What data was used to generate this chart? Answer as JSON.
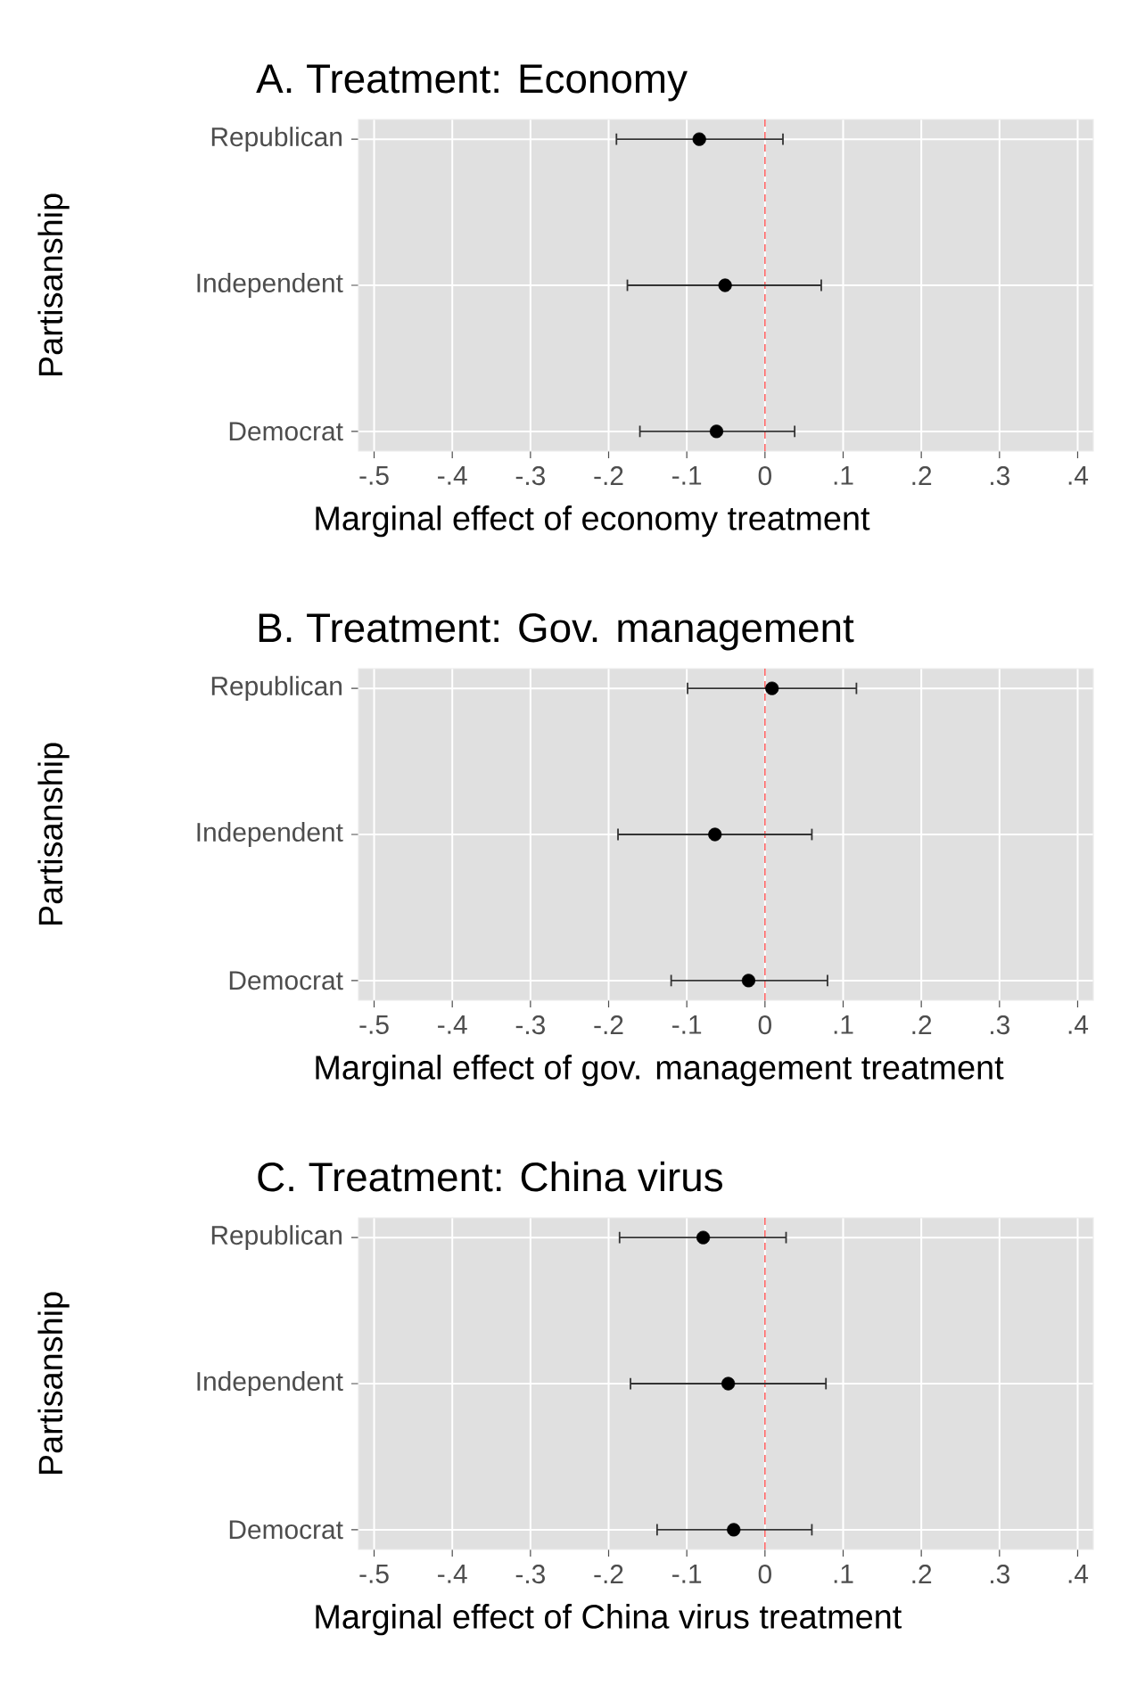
{
  "chart_data": [
    {
      "type": "scatter",
      "orientation": "horizontal",
      "title": "A. Treatment: Economy",
      "xlabel": "Marginal effect of economy treatment",
      "ylabel": "Partisanship",
      "categories": [
        "Republican",
        "Independent",
        "Democrat"
      ],
      "series": [
        {
          "color": "#000000",
          "values": [
            -0.084,
            -0.051,
            -0.062
          ],
          "errors": [
            [
              -0.19,
              0.023
            ],
            [
              -0.176,
              0.072
            ],
            [
              -0.16,
              0.038
            ]
          ]
        }
      ],
      "xlim": [
        -0.52,
        0.42
      ],
      "xticks": [
        {
          "value": -0.5,
          "label": "-.5"
        },
        {
          "value": -0.4,
          "label": "-.4"
        },
        {
          "value": -0.3,
          "label": "-.3"
        },
        {
          "value": -0.2,
          "label": "-.2"
        },
        {
          "value": -0.1,
          "label": "-.1"
        },
        0,
        {
          "value": 0.1,
          "label": ".1"
        },
        {
          "value": 0.2,
          "label": ".2"
        },
        {
          "value": 0.3,
          "label": ".3"
        },
        {
          "value": 0.4,
          "label": ".4"
        }
      ],
      "ref_lines": [
        {
          "axis": "x",
          "value": 0,
          "color": "#ff6666",
          "line_style": "dashed"
        }
      ],
      "grid": true
    },
    {
      "type": "scatter",
      "orientation": "horizontal",
      "title": "B. Treatment: Gov. management",
      "xlabel": "Marginal effect of gov. management treatment",
      "ylabel": "Partisanship",
      "categories": [
        "Republican",
        "Independent",
        "Democrat"
      ],
      "series": [
        {
          "color": "#000000",
          "values": [
            0.009,
            -0.064,
            -0.021
          ],
          "errors": [
            [
              -0.099,
              0.117
            ],
            [
              -0.188,
              0.06
            ],
            [
              -0.12,
              0.08
            ]
          ]
        }
      ],
      "xlim": [
        -0.52,
        0.42
      ],
      "xticks": [
        {
          "value": -0.5,
          "label": "-.5"
        },
        {
          "value": -0.4,
          "label": "-.4"
        },
        {
          "value": -0.3,
          "label": "-.3"
        },
        {
          "value": -0.2,
          "label": "-.2"
        },
        {
          "value": -0.1,
          "label": "-.1"
        },
        0,
        {
          "value": 0.1,
          "label": ".1"
        },
        {
          "value": 0.2,
          "label": ".2"
        },
        {
          "value": 0.3,
          "label": ".3"
        },
        {
          "value": 0.4,
          "label": ".4"
        }
      ],
      "ref_lines": [
        {
          "axis": "x",
          "value": 0,
          "color": "#ff6666",
          "line_style": "dashed"
        }
      ],
      "grid": true
    },
    {
      "type": "scatter",
      "orientation": "horizontal",
      "title": "C. Treatment: China virus",
      "xlabel": "Marginal effect of China virus treatment",
      "ylabel": "Partisanship",
      "categories": [
        "Republican",
        "Independent",
        "Democrat"
      ],
      "series": [
        {
          "color": "#000000",
          "values": [
            -0.079,
            -0.047,
            -0.04
          ],
          "errors": [
            [
              -0.186,
              0.027
            ],
            [
              -0.172,
              0.078
            ],
            [
              -0.138,
              0.06
            ]
          ]
        }
      ],
      "xlim": [
        -0.52,
        0.42
      ],
      "xticks": [
        {
          "value": -0.5,
          "label": "-.5"
        },
        {
          "value": -0.4,
          "label": "-.4"
        },
        {
          "value": -0.3,
          "label": "-.3"
        },
        {
          "value": -0.2,
          "label": "-.2"
        },
        {
          "value": -0.1,
          "label": "-.1"
        },
        0,
        {
          "value": 0.1,
          "label": ".1"
        },
        {
          "value": 0.2,
          "label": ".2"
        },
        {
          "value": 0.3,
          "label": ".3"
        },
        {
          "value": 0.4,
          "label": ".4"
        }
      ],
      "ref_lines": [
        {
          "axis": "x",
          "value": 0,
          "color": "#ff6666",
          "line_style": "dashed"
        }
      ],
      "grid": true
    }
  ]
}
